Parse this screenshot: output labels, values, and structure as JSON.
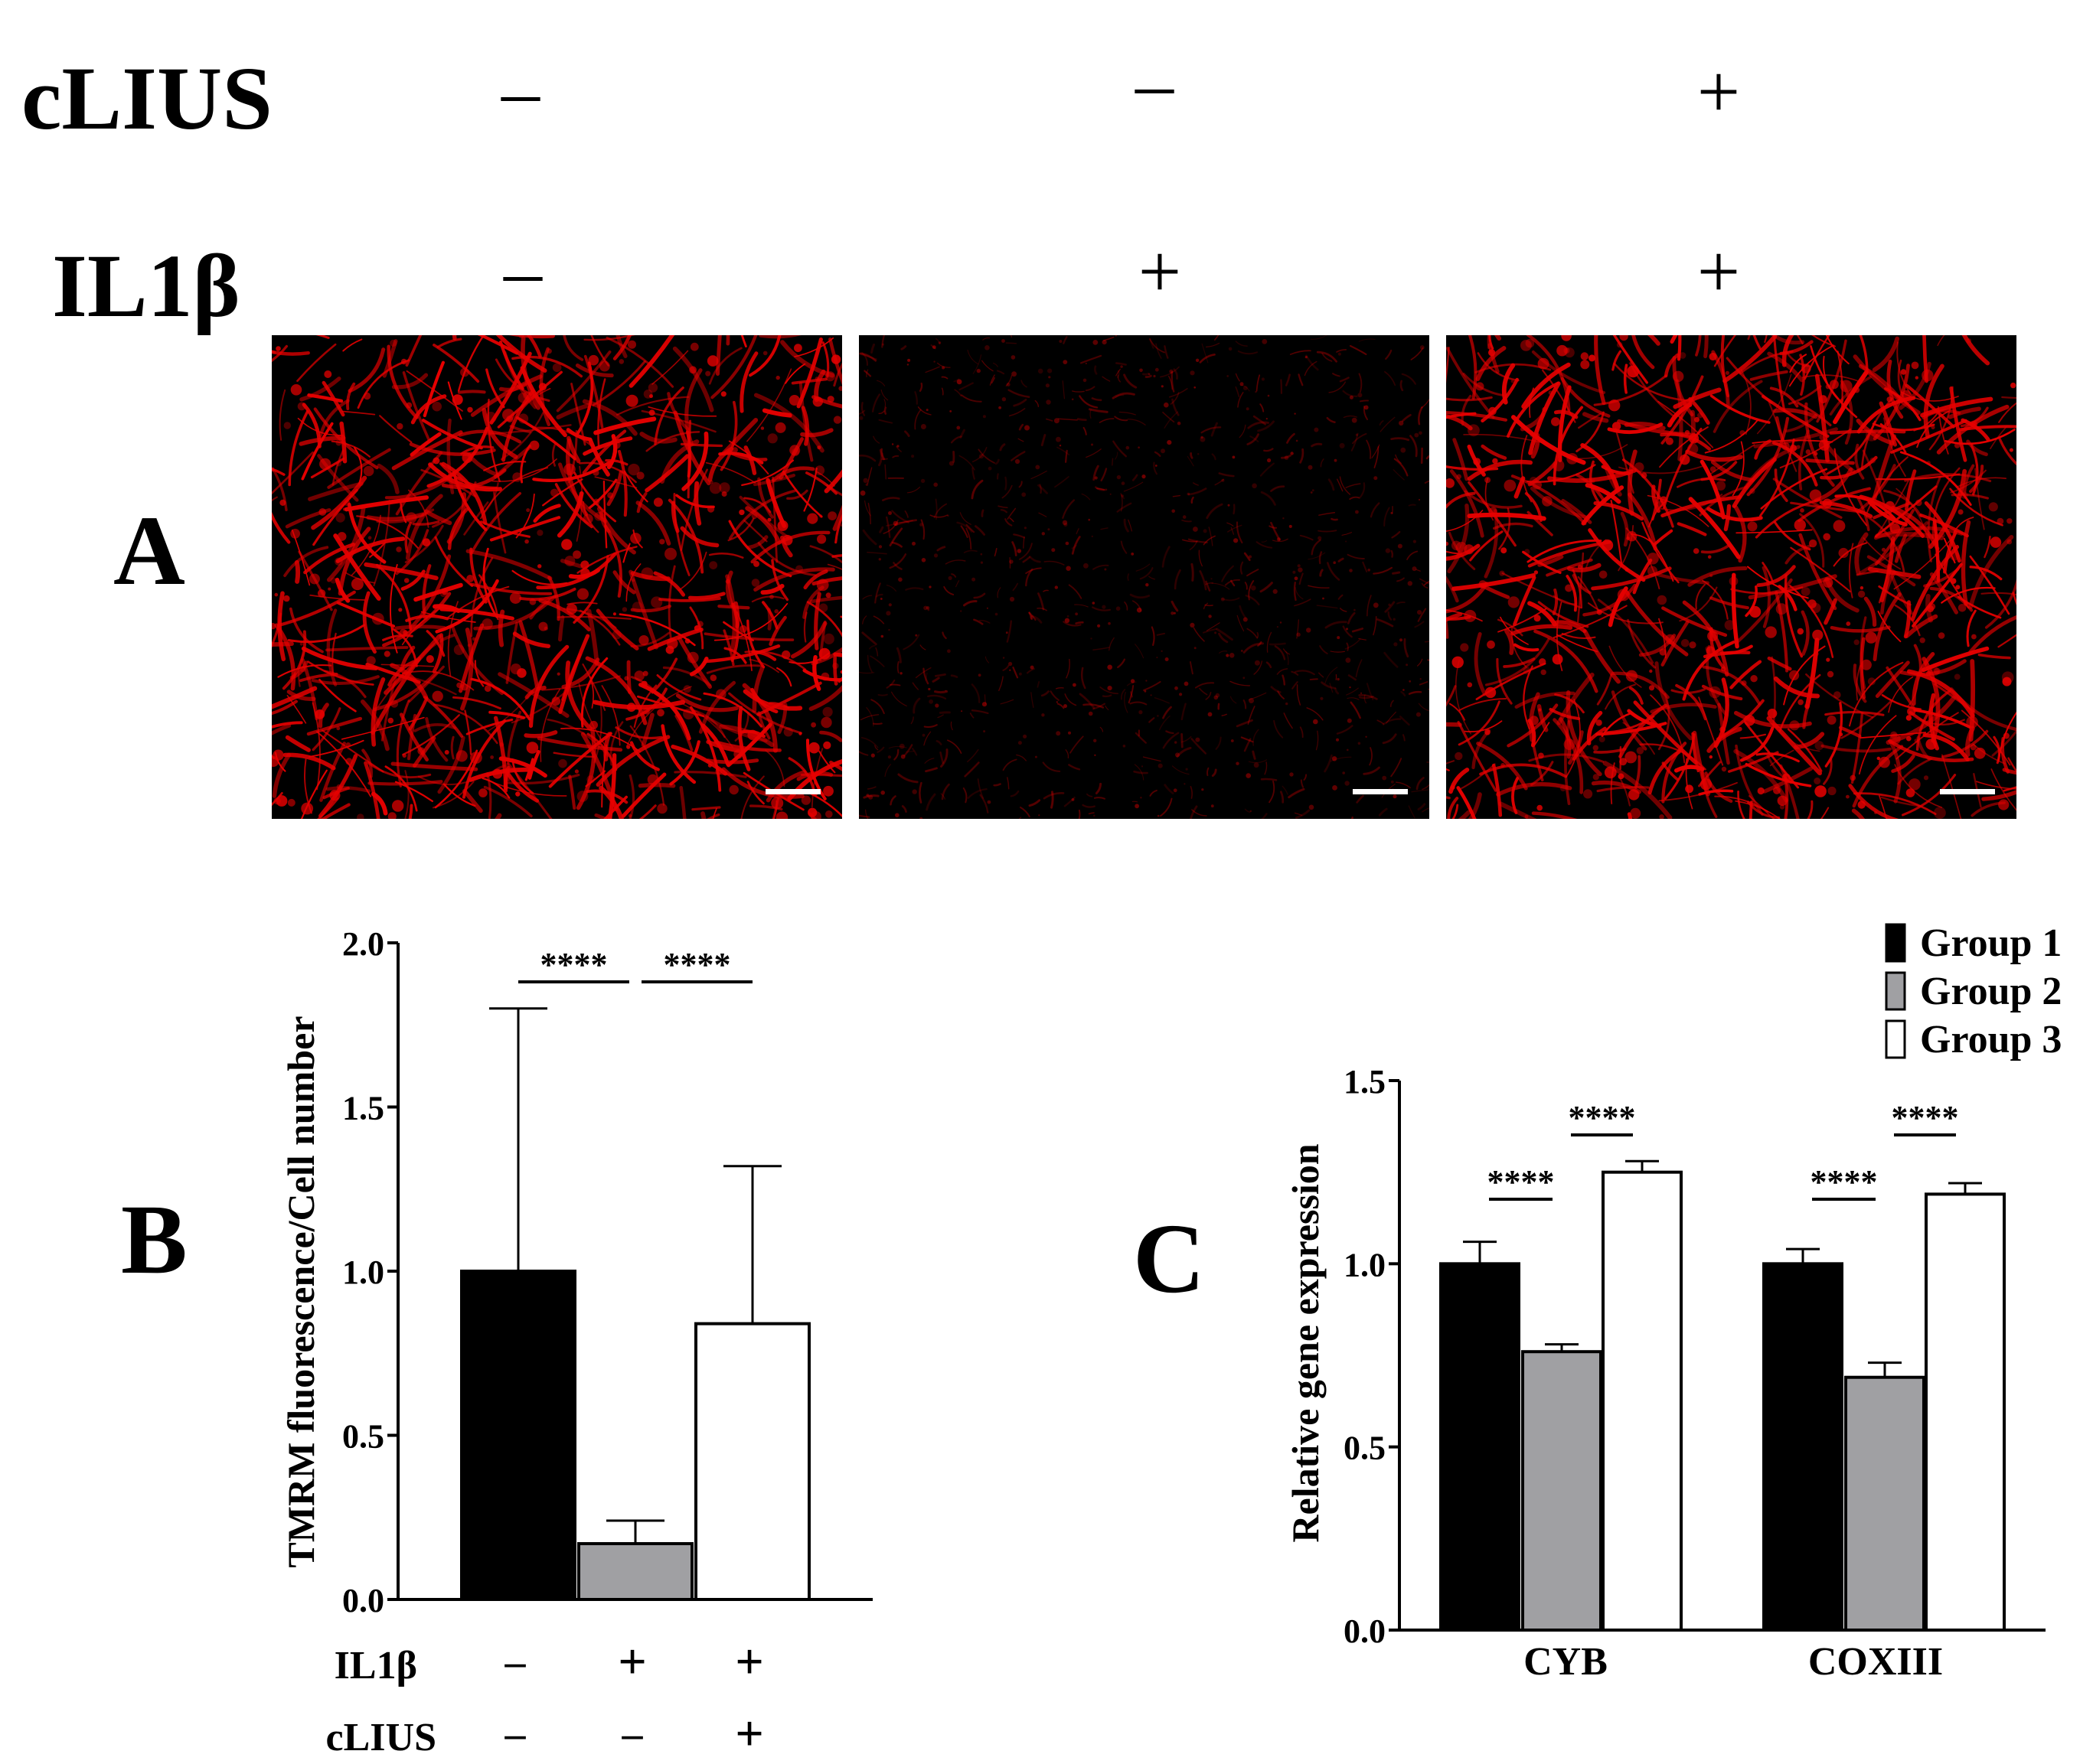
{
  "header": {
    "clius_label": "cLIUS",
    "il1b_label": "IL1β",
    "clius_signs": [
      "–",
      "–",
      "+"
    ],
    "il1b_signs": [
      "–",
      "+",
      "+"
    ]
  },
  "panel_letters": {
    "a": "A",
    "b": "B",
    "c": "C"
  },
  "panel_a": {
    "images": [
      {
        "name": "control",
        "intensity": 1.0
      },
      {
        "name": "il1b",
        "intensity": 0.35
      },
      {
        "name": "il1b-clius",
        "intensity": 0.9
      }
    ],
    "fluorescence_color": "#e60000"
  },
  "chart_data": [
    {
      "type": "bar",
      "panel": "B",
      "ylabel": "TMRM fluorescence/Cell number",
      "ylim": [
        0,
        2.0
      ],
      "yticks": [
        "0.0",
        "0.5",
        "1.0",
        "1.5",
        "2.0"
      ],
      "values": [
        1.0,
        0.17,
        0.84
      ],
      "errors": [
        0.8,
        0.07,
        0.48
      ],
      "colors": [
        "#000000",
        "#a0a0a3",
        "#ffffff"
      ],
      "significance": [
        {
          "from": 0,
          "to": 1,
          "label": "****"
        },
        {
          "from": 1,
          "to": 2,
          "label": "****"
        }
      ],
      "condition_rows": [
        {
          "label": "IL1β",
          "signs": [
            "–",
            "+",
            "+"
          ]
        },
        {
          "label": "cLIUS",
          "signs": [
            "–",
            "–",
            "+"
          ]
        }
      ]
    },
    {
      "type": "bar",
      "panel": "C",
      "ylabel": "Relative gene expression",
      "ylim": [
        0,
        1.5
      ],
      "yticks": [
        "0.0",
        "0.5",
        "1.0",
        "1.5"
      ],
      "categories": [
        "CYB",
        "COXIII"
      ],
      "series": [
        {
          "name": "Group 1",
          "color": "#000000",
          "values": [
            1.0,
            1.0
          ],
          "errors": [
            0.06,
            0.04
          ]
        },
        {
          "name": "Group 2",
          "color": "#a0a0a3",
          "values": [
            0.76,
            0.69
          ],
          "errors": [
            0.02,
            0.04
          ]
        },
        {
          "name": "Group 3",
          "color": "#ffffff",
          "values": [
            1.25,
            1.19
          ],
          "errors": [
            0.03,
            0.03
          ]
        }
      ],
      "significance": [
        {
          "category": 0,
          "from": 0,
          "to": 1,
          "label": "****"
        },
        {
          "category": 0,
          "from": 1,
          "to": 2,
          "label": "****"
        },
        {
          "category": 1,
          "from": 0,
          "to": 1,
          "label": "****"
        },
        {
          "category": 1,
          "from": 1,
          "to": 2,
          "label": "****"
        }
      ],
      "legend_position": "top-right"
    }
  ]
}
